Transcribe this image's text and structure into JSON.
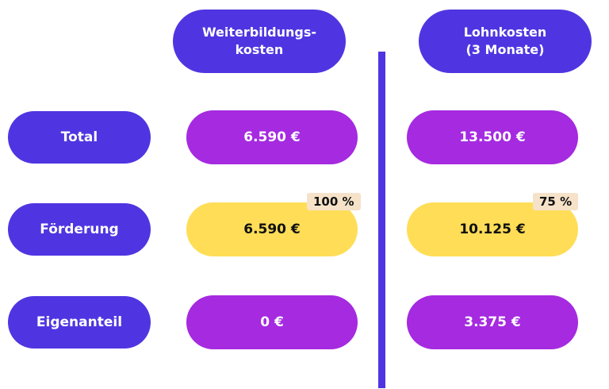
{
  "headers": {
    "col1": [
      "Weiterbildungs-",
      "kosten"
    ],
    "col2": [
      "Lohnkosten",
      "(3 Monate)"
    ]
  },
  "rows": {
    "total": {
      "label": "Total",
      "col1": "6.590 €",
      "col2": "13.500 €"
    },
    "foerderung": {
      "label": "Förderung",
      "col1": "6.590 €",
      "col2": "10.125 €",
      "col1_badge": "100 %",
      "col2_badge": "75 %"
    },
    "eigenanteil": {
      "label": "Eigenanteil",
      "col1": "0 €",
      "col2": "3.375 €"
    }
  },
  "colors": {
    "header_blue": "#4f35e1",
    "value_purple": "#a52ae0",
    "highlight_yellow": "#ffdd57",
    "badge_beige": "#f5e2c8"
  }
}
